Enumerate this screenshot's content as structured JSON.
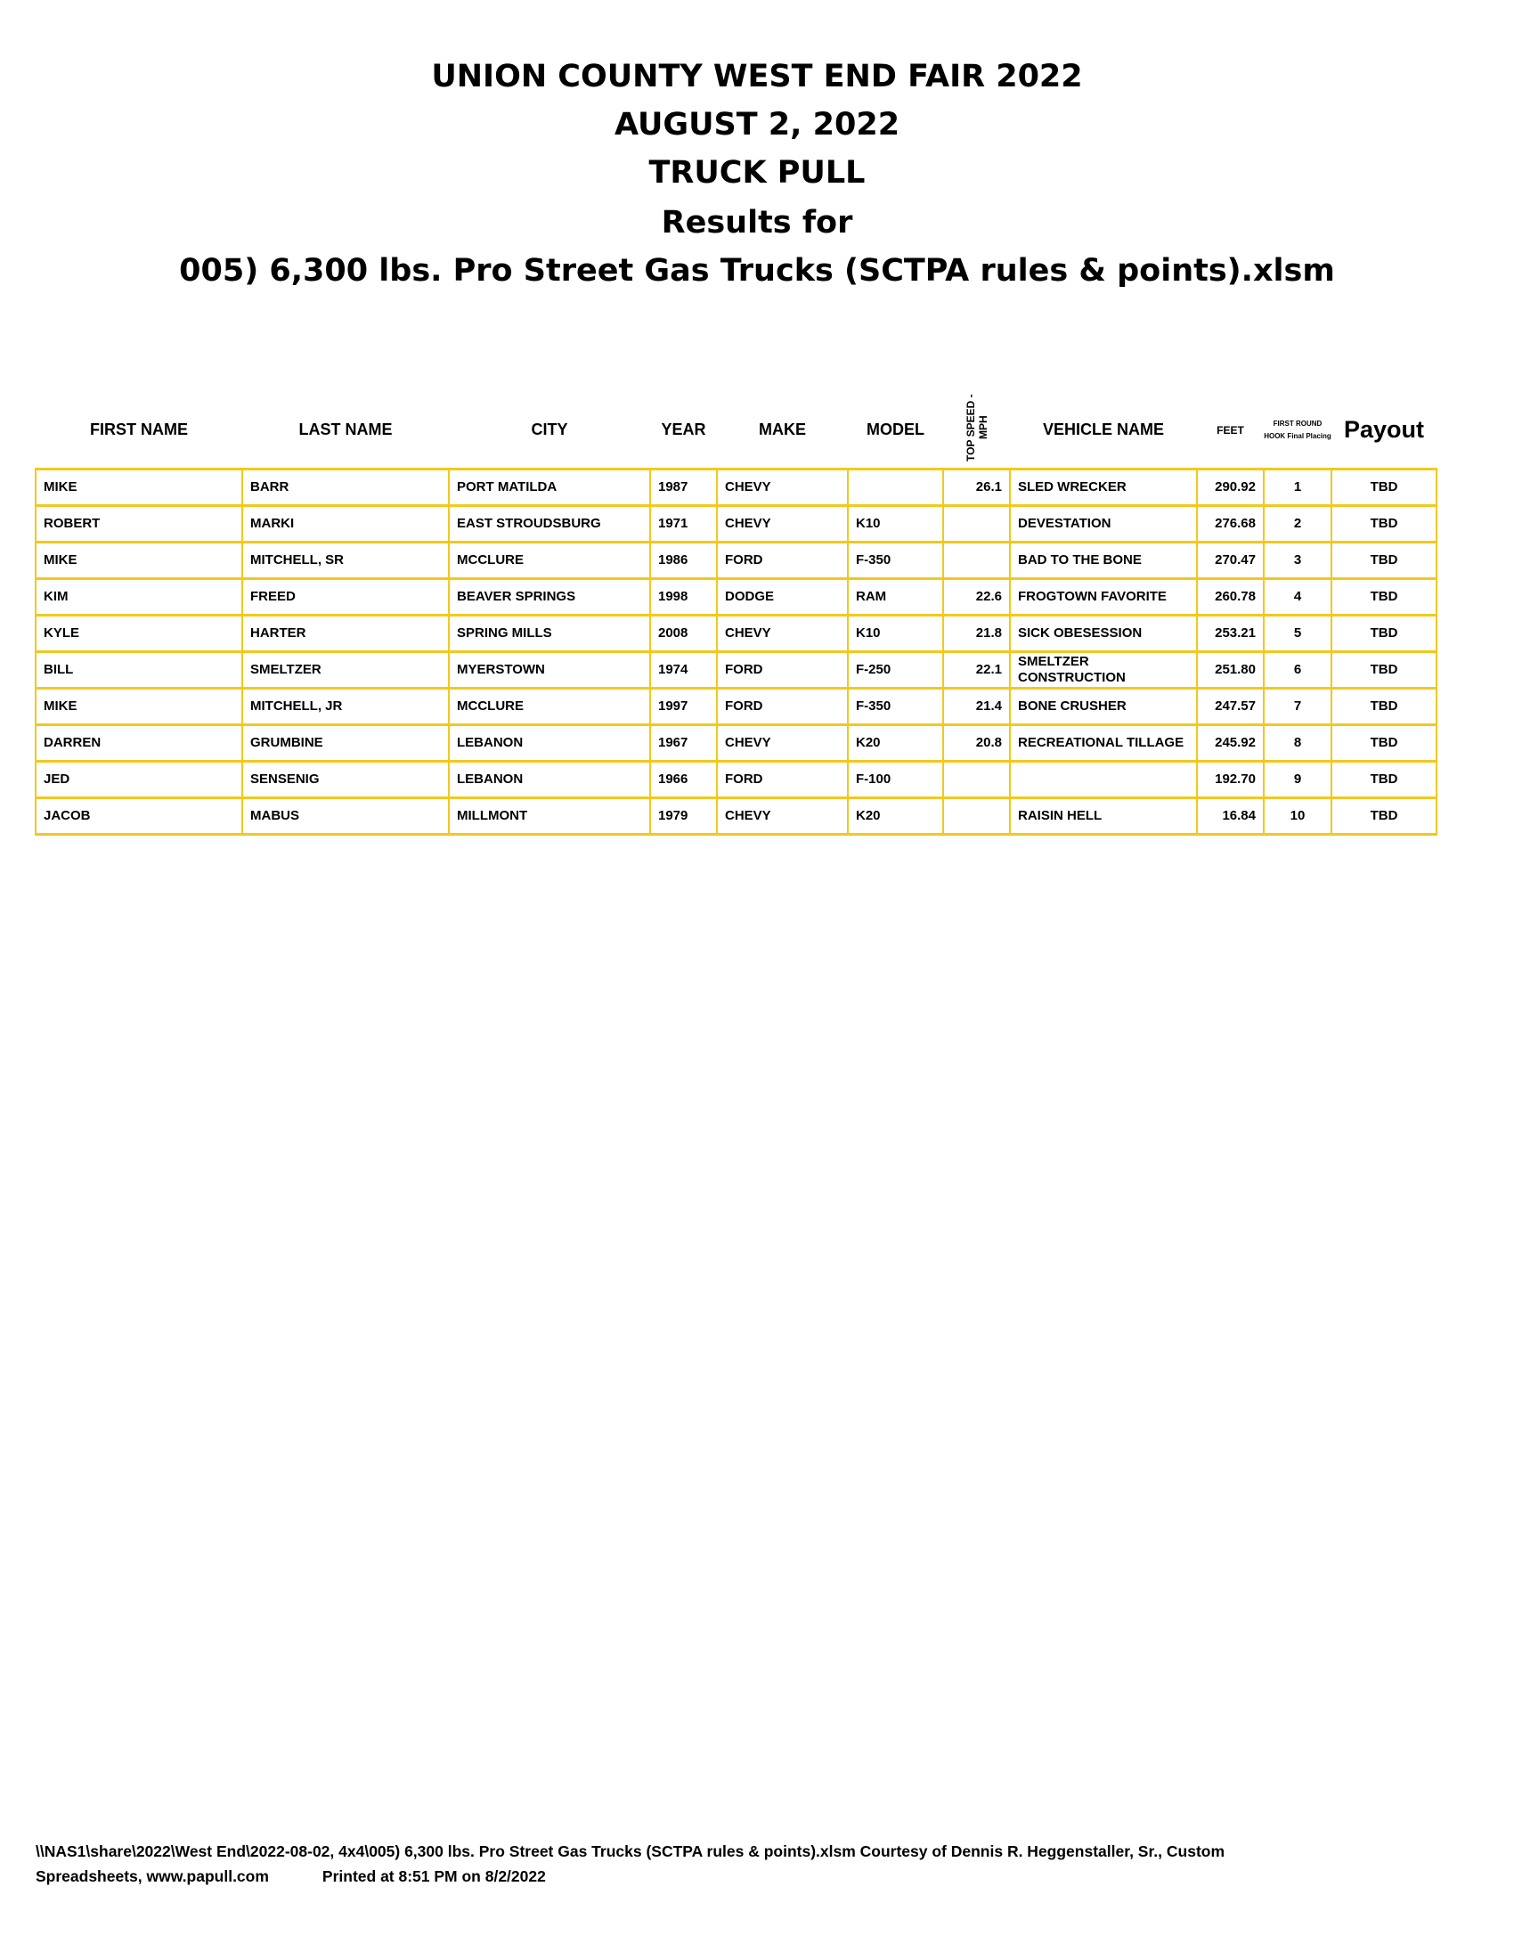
{
  "titles": [
    "UNION COUNTY WEST END FAIR 2022",
    "AUGUST 2, 2022",
    "TRUCK PULL",
    "Results for",
    "005) 6,300 lbs. Pro Street Gas Trucks (SCTPA rules & points).xlsm"
  ],
  "table": {
    "headers": [
      "FIRST NAME",
      "LAST NAME",
      "CITY",
      "YEAR",
      "MAKE",
      "MODEL",
      "TOP SPEED - MPH",
      "VEHICLE NAME",
      "FEET",
      "FIRST ROUND HOOK Final Placing",
      "Payout"
    ],
    "rows": [
      [
        "MIKE",
        "BARR",
        "PORT MATILDA",
        "1987",
        "CHEVY",
        "",
        "26.1",
        "SLED WRECKER",
        "290.92",
        "1",
        "TBD"
      ],
      [
        "ROBERT",
        "MARKI",
        "EAST STROUDSBURG",
        "1971",
        "CHEVY",
        "K10",
        "",
        "DEVESTATION",
        "276.68",
        "2",
        "TBD"
      ],
      [
        "MIKE",
        "MITCHELL, SR",
        "MCCLURE",
        "1986",
        "FORD",
        "F-350",
        "",
        "BAD TO THE BONE",
        "270.47",
        "3",
        "TBD"
      ],
      [
        "KIM",
        "FREED",
        "BEAVER SPRINGS",
        "1998",
        "DODGE",
        "RAM",
        "22.6",
        "FROGTOWN FAVORITE",
        "260.78",
        "4",
        "TBD"
      ],
      [
        "KYLE",
        "HARTER",
        "SPRING MILLS",
        "2008",
        "CHEVY",
        "K10",
        "21.8",
        "SICK OBESESSION",
        "253.21",
        "5",
        "TBD"
      ],
      [
        "BILL",
        "SMELTZER",
        "MYERSTOWN",
        "1974",
        "FORD",
        "F-250",
        "22.1",
        "SMELTZER CONSTRUCTION",
        "251.80",
        "6",
        "TBD"
      ],
      [
        "MIKE",
        "MITCHELL, JR",
        "MCCLURE",
        "1997",
        "FORD",
        "F-350",
        "21.4",
        "BONE CRUSHER",
        "247.57",
        "7",
        "TBD"
      ],
      [
        "DARREN",
        "GRUMBINE",
        "LEBANON",
        "1967",
        "CHEVY",
        "K20",
        "20.8",
        "RECREATIONAL TILLAGE",
        "245.92",
        "8",
        "TBD"
      ],
      [
        "JED",
        "SENSENIG",
        "LEBANON",
        "1966",
        "FORD",
        "F-100",
        "",
        "",
        "192.70",
        "9",
        "TBD"
      ],
      [
        "JACOB",
        "MABUS",
        "MILLMONT",
        "1979",
        "CHEVY",
        "K20",
        "",
        "RAISIN HELL",
        "16.84",
        "10",
        "TBD"
      ]
    ]
  },
  "footer": {
    "line1": "\\\\NAS1\\share\\2022\\West End\\2022-08-02, 4x4\\005) 6,300 lbs. Pro Street Gas Trucks (SCTPA rules & points).xlsm  Courtesy of Dennis R. Heggenstaller, Sr., Custom",
    "line2a": "Spreadsheets, www.papull.com",
    "line2b": "Printed at 8:51 PM on 8/2/2022"
  },
  "colors": {
    "border": "#f2c81e"
  }
}
